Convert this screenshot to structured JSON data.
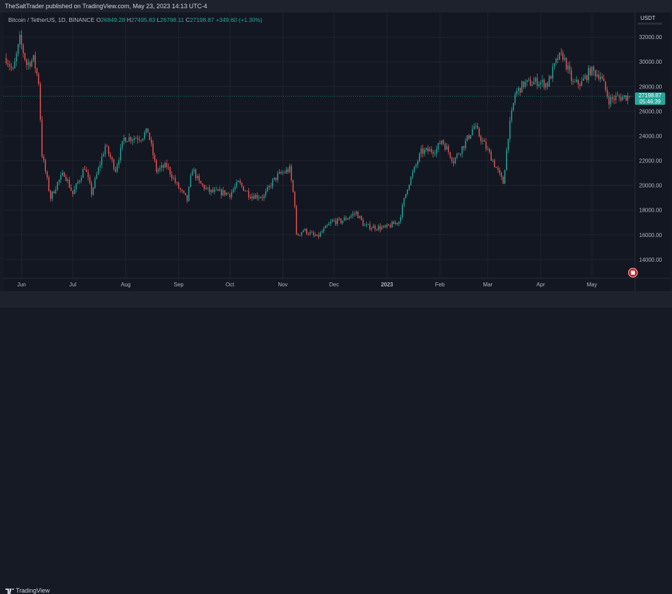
{
  "header": {
    "published": "TheSaltTrader published on TradingView.com, May 23, 2023 14:13 UTC-4"
  },
  "legend": {
    "symbol": "Bitcoin / TetherUS, 1D, BINANCE",
    "o_label": "O",
    "o_value": "26849.28",
    "h_label": "H",
    "h_value": "27495.83",
    "l_label": "L",
    "l_value": "26798.11",
    "c_label": "C",
    "c_value": "27198.87",
    "change": "+349.60 (+1.30%)"
  },
  "currency": "USDT",
  "price_label": {
    "price": "27198.87",
    "countdown": "05:46:39"
  },
  "footer": {
    "brand": "TradingView"
  },
  "colors": {
    "up": "#26a69a",
    "down": "#ef5350",
    "background": "#131722",
    "grid": "#1f2330",
    "text": "#b2b5be"
  },
  "chart_data": {
    "type": "candlestick",
    "symbol": "Bitcoin / TetherUS",
    "interval": "1D",
    "exchange": "BINANCE",
    "ylim": [
      12500,
      34000
    ],
    "y_ticks": [
      14000,
      16000,
      18000,
      20000,
      22000,
      24000,
      26000,
      28000,
      30000,
      32000
    ],
    "y_tick_labels": [
      "14000.00",
      "16000.00",
      "18000.00",
      "20000.00",
      "22000.00",
      "24000.00",
      "26000.00",
      "28000.00",
      "30000.00",
      "32000.00"
    ],
    "x_range": [
      "2022-05-23",
      "2023-05-23"
    ],
    "x_ticks": [
      "2022-06-01",
      "2022-07-01",
      "2022-08-01",
      "2022-09-01",
      "2022-10-01",
      "2022-11-01",
      "2022-12-01",
      "2023-01-01",
      "2023-02-01",
      "2023-03-01",
      "2023-04-01",
      "2023-05-01"
    ],
    "x_tick_labels": [
      "Jun",
      "Jul",
      "Aug",
      "Sep",
      "Oct",
      "Nov",
      "Dec",
      "2023",
      "Feb",
      "Mar",
      "Apr",
      "May"
    ],
    "last_price": 27198.87,
    "close_path": [
      [
        "2022-05-23",
        30300
      ],
      [
        "2022-05-27",
        29200
      ],
      [
        "2022-05-31",
        31800
      ],
      [
        "2022-06-04",
        29800
      ],
      [
        "2022-06-08",
        30200
      ],
      [
        "2022-06-11",
        28400
      ],
      [
        "2022-06-13",
        22500
      ],
      [
        "2022-06-18",
        19000
      ],
      [
        "2022-06-22",
        20200
      ],
      [
        "2022-06-26",
        21000
      ],
      [
        "2022-07-01",
        19300
      ],
      [
        "2022-07-08",
        21500
      ],
      [
        "2022-07-12",
        19400
      ],
      [
        "2022-07-20",
        23200
      ],
      [
        "2022-07-26",
        21300
      ],
      [
        "2022-07-31",
        23800
      ],
      [
        "2022-08-10",
        23900
      ],
      [
        "2022-08-14",
        24400
      ],
      [
        "2022-08-19",
        21200
      ],
      [
        "2022-08-25",
        21600
      ],
      [
        "2022-08-31",
        20000
      ],
      [
        "2022-09-06",
        18800
      ],
      [
        "2022-09-09",
        21400
      ],
      [
        "2022-09-13",
        20200
      ],
      [
        "2022-09-19",
        19500
      ],
      [
        "2022-09-28",
        19400
      ],
      [
        "2022-10-01",
        19300
      ],
      [
        "2022-10-06",
        20200
      ],
      [
        "2022-10-13",
        19200
      ],
      [
        "2022-10-21",
        19100
      ],
      [
        "2022-10-25",
        20100
      ],
      [
        "2022-10-29",
        20800
      ],
      [
        "2022-11-05",
        21300
      ],
      [
        "2022-11-08",
        18500
      ],
      [
        "2022-11-09",
        15900
      ],
      [
        "2022-11-13",
        16400
      ],
      [
        "2022-11-21",
        15800
      ],
      [
        "2022-11-30",
        17100
      ],
      [
        "2022-12-05",
        17100
      ],
      [
        "2022-12-14",
        17800
      ],
      [
        "2022-12-19",
        16700
      ],
      [
        "2022-12-31",
        16550
      ],
      [
        "2023-01-08",
        17100
      ],
      [
        "2023-01-13",
        19900
      ],
      [
        "2023-01-21",
        22700
      ],
      [
        "2023-01-30",
        22900
      ],
      [
        "2023-02-02",
        23700
      ],
      [
        "2023-02-09",
        22000
      ],
      [
        "2023-02-16",
        23500
      ],
      [
        "2023-02-21",
        24800
      ],
      [
        "2023-03-03",
        22300
      ],
      [
        "2023-03-10",
        20200
      ],
      [
        "2023-03-13",
        24100
      ],
      [
        "2023-03-17",
        27400
      ],
      [
        "2023-03-22",
        28200
      ],
      [
        "2023-03-30",
        28400
      ],
      [
        "2023-04-05",
        28200
      ],
      [
        "2023-04-11",
        30300
      ],
      [
        "2023-04-14",
        30500
      ],
      [
        "2023-04-20",
        28200
      ],
      [
        "2023-04-25",
        28300
      ],
      [
        "2023-04-30",
        29300
      ],
      [
        "2023-05-06",
        28900
      ],
      [
        "2023-05-11",
        26900
      ],
      [
        "2023-05-15",
        27100
      ],
      [
        "2023-05-23",
        27199
      ]
    ]
  }
}
